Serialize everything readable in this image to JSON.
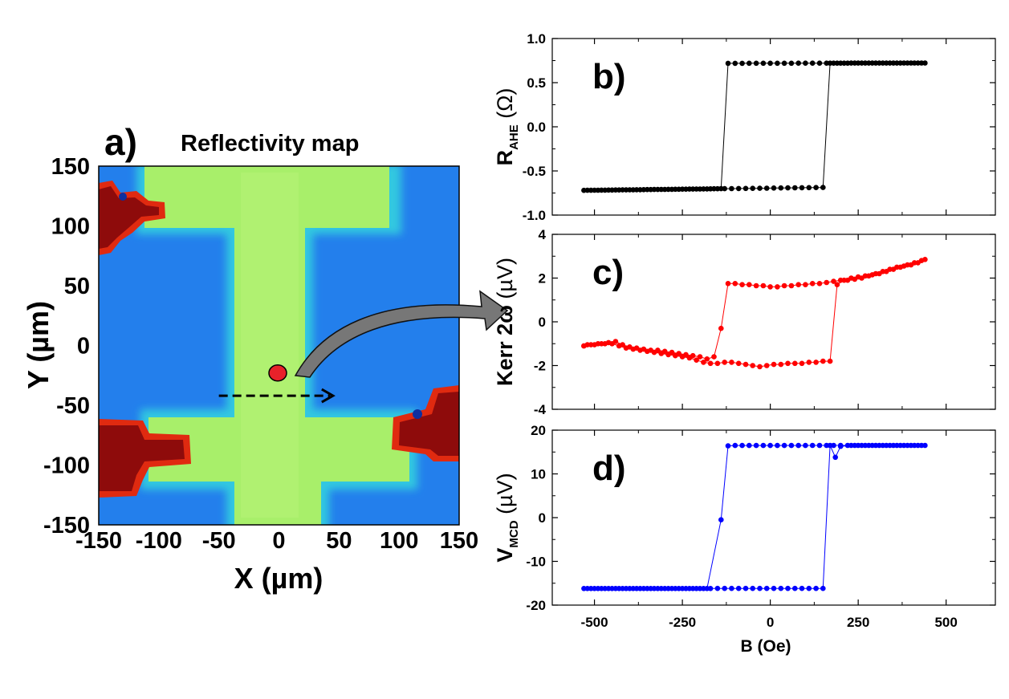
{
  "map": {
    "panel_label": "a)",
    "title": "Reflectivity map",
    "xlabel": "X (µm)",
    "ylabel": "Y (µm)",
    "xlim": [
      -150,
      150
    ],
    "ylim": [
      -150,
      150
    ],
    "xticks": [
      -150,
      -100,
      -50,
      0,
      50,
      100,
      150
    ],
    "yticks": [
      150,
      100,
      50,
      0,
      -50,
      -100,
      -150
    ],
    "tick_labels_x": [
      "-150",
      "-100",
      "-50",
      "0",
      "50",
      "100",
      "150"
    ],
    "tick_labels_y": [
      "150",
      "100",
      "50",
      "0",
      "-50",
      "-100",
      "-150"
    ],
    "spot": {
      "x": -1,
      "y": -23
    },
    "scan_arrow": {
      "x0": -50,
      "x1": 45,
      "y": -42
    },
    "colors": {
      "background": "#1e73ea",
      "background_light": "#2f9af0",
      "device": "#a8ef6a",
      "device_edge": "#32c8e0",
      "pads": "#8e0b0b",
      "spot": "#e8222a"
    }
  },
  "chart_data": [
    {
      "type": "scatter",
      "panel": "b)",
      "ylabel_main": "R",
      "ylabel_sub": "AHE",
      "ylabel_unit": "(Ω)",
      "xlim": [
        -620,
        640
      ],
      "ylim": [
        -1.0,
        1.0
      ],
      "yticks": [
        1.0,
        0.5,
        0.0,
        -0.5,
        -1.0
      ],
      "ytick_labels": [
        "1.0",
        "0.5",
        "0.0",
        "-0.5",
        "-1.0"
      ],
      "color": "#000000",
      "low": -0.72,
      "high": 0.72,
      "switch_down": -130,
      "switch_up": 170,
      "descending_branch": {
        "start": 440,
        "end": -530
      },
      "ascending_branch": {
        "start": -530,
        "end": 440
      }
    },
    {
      "type": "scatter",
      "panel": "c)",
      "ylabel_main": "Kerr 2ω",
      "ylabel_unit": "(µV)",
      "xlim": [
        -620,
        640
      ],
      "ylim": [
        -4,
        4
      ],
      "yticks": [
        4,
        2,
        0,
        -2,
        -4
      ],
      "ytick_labels": [
        "4",
        "2",
        "0",
        "-2",
        "-4"
      ],
      "color": "#ff0000",
      "descending": [
        [
          440,
          2.85
        ],
        [
          420,
          2.7
        ],
        [
          400,
          2.6
        ],
        [
          380,
          2.55
        ],
        [
          360,
          2.5
        ],
        [
          340,
          2.4
        ],
        [
          320,
          2.3
        ],
        [
          300,
          2.2
        ],
        [
          280,
          2.1
        ],
        [
          260,
          2.0
        ],
        [
          240,
          1.95
        ],
        [
          220,
          1.9
        ],
        [
          200,
          1.9
        ],
        [
          180,
          1.85
        ],
        [
          160,
          1.8
        ],
        [
          140,
          1.75
        ],
        [
          120,
          1.75
        ],
        [
          100,
          1.7
        ],
        [
          80,
          1.7
        ],
        [
          60,
          1.65
        ],
        [
          40,
          1.65
        ],
        [
          20,
          1.6
        ],
        [
          0,
          1.6
        ],
        [
          -20,
          1.65
        ],
        [
          -40,
          1.65
        ],
        [
          -60,
          1.7
        ],
        [
          -80,
          1.7
        ],
        [
          -100,
          1.75
        ],
        [
          -120,
          1.75
        ],
        [
          -140,
          -0.3
        ],
        [
          -160,
          -1.6
        ],
        [
          -180,
          -1.7
        ],
        [
          -200,
          -1.6
        ],
        [
          -220,
          -1.55
        ],
        [
          -240,
          -1.5
        ],
        [
          -260,
          -1.45
        ],
        [
          -280,
          -1.4
        ],
        [
          -300,
          -1.35
        ],
        [
          -320,
          -1.3
        ],
        [
          -340,
          -1.3
        ],
        [
          -360,
          -1.25
        ],
        [
          -380,
          -1.2
        ],
        [
          -400,
          -1.15
        ],
        [
          -420,
          -1.05
        ],
        [
          -440,
          -0.9
        ],
        [
          -460,
          -0.95
        ],
        [
          -480,
          -1.0
        ],
        [
          -500,
          -1.05
        ],
        [
          -520,
          -1.05
        ],
        [
          -530,
          -1.1
        ]
      ],
      "ascending": [
        [
          -530,
          -1.1
        ],
        [
          -510,
          -1.05
        ],
        [
          -490,
          -1.0
        ],
        [
          -470,
          -1.0
        ],
        [
          -450,
          -1.0
        ],
        [
          -430,
          -1.1
        ],
        [
          -410,
          -1.2
        ],
        [
          -390,
          -1.25
        ],
        [
          -370,
          -1.3
        ],
        [
          -350,
          -1.35
        ],
        [
          -330,
          -1.4
        ],
        [
          -310,
          -1.45
        ],
        [
          -290,
          -1.5
        ],
        [
          -270,
          -1.55
        ],
        [
          -250,
          -1.6
        ],
        [
          -230,
          -1.65
        ],
        [
          -210,
          -1.75
        ],
        [
          -190,
          -1.85
        ],
        [
          -170,
          -1.9
        ],
        [
          -150,
          -1.9
        ],
        [
          -130,
          -1.85
        ],
        [
          -110,
          -1.85
        ],
        [
          -90,
          -1.9
        ],
        [
          -70,
          -1.95
        ],
        [
          -50,
          -2.0
        ],
        [
          -30,
          -2.05
        ],
        [
          -10,
          -2.0
        ],
        [
          10,
          -1.95
        ],
        [
          30,
          -1.95
        ],
        [
          50,
          -1.9
        ],
        [
          70,
          -1.9
        ],
        [
          90,
          -1.9
        ],
        [
          110,
          -1.85
        ],
        [
          130,
          -1.85
        ],
        [
          150,
          -1.8
        ],
        [
          170,
          -1.8
        ],
        [
          190,
          1.7
        ],
        [
          210,
          1.9
        ],
        [
          230,
          2.0
        ],
        [
          250,
          2.05
        ],
        [
          270,
          2.1
        ],
        [
          290,
          2.15
        ],
        [
          310,
          2.2
        ],
        [
          330,
          2.3
        ],
        [
          350,
          2.4
        ],
        [
          370,
          2.5
        ],
        [
          390,
          2.6
        ],
        [
          410,
          2.7
        ],
        [
          430,
          2.8
        ]
      ]
    },
    {
      "type": "scatter",
      "panel": "d)",
      "ylabel_main": "V",
      "ylabel_sub": "MCD",
      "ylabel_unit": "(µV)",
      "xlim": [
        -620,
        640
      ],
      "ylim": [
        -20,
        20
      ],
      "yticks": [
        20,
        10,
        0,
        -10,
        -20
      ],
      "ytick_labels": [
        "20",
        "10",
        "0",
        "-10",
        "-20"
      ],
      "xticks": [
        -500,
        -250,
        0,
        250,
        500
      ],
      "xtick_labels": [
        "-500",
        "-250",
        "0",
        "250",
        "500"
      ],
      "xlabel": "B (Oe)",
      "color": "#0000ff",
      "low": -16.2,
      "high": 16.5,
      "switch_down_points": [
        [
          -140,
          -0.5
        ],
        [
          -120,
          16.4
        ]
      ],
      "switch_up_points": [
        [
          185,
          13.8
        ],
        [
          200,
          16.3
        ]
      ],
      "switch_down": -160,
      "switch_up": 170,
      "descending_branch": {
        "start": 440,
        "end": -530
      },
      "ascending_branch": {
        "start": -530,
        "end": 440
      }
    }
  ]
}
